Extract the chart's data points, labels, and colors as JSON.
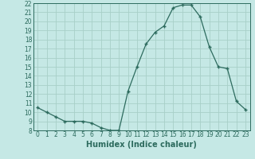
{
  "x": [
    0,
    1,
    2,
    3,
    4,
    5,
    6,
    7,
    8,
    9,
    10,
    11,
    12,
    13,
    14,
    15,
    16,
    17,
    18,
    19,
    20,
    21,
    22,
    23
  ],
  "y": [
    10.5,
    10.0,
    9.5,
    9.0,
    9.0,
    9.0,
    8.8,
    8.3,
    8.0,
    8.0,
    12.3,
    15.0,
    17.5,
    18.8,
    19.5,
    21.5,
    21.8,
    21.8,
    20.5,
    17.2,
    15.0,
    14.8,
    11.2,
    10.3
  ],
  "line_color": "#2d6b5e",
  "marker": "+",
  "bg_color": "#c5e8e5",
  "grid_color": "#a8cfc8",
  "xlabel": "Humidex (Indice chaleur)",
  "ylim": [
    8,
    22
  ],
  "xlim": [
    -0.5,
    23.5
  ],
  "yticks": [
    8,
    9,
    10,
    11,
    12,
    13,
    14,
    15,
    16,
    17,
    18,
    19,
    20,
    21,
    22
  ],
  "xticks": [
    0,
    1,
    2,
    3,
    4,
    5,
    6,
    7,
    8,
    9,
    10,
    11,
    12,
    13,
    14,
    15,
    16,
    17,
    18,
    19,
    20,
    21,
    22,
    23
  ],
  "tick_fontsize": 5.5,
  "label_fontsize": 7.0
}
